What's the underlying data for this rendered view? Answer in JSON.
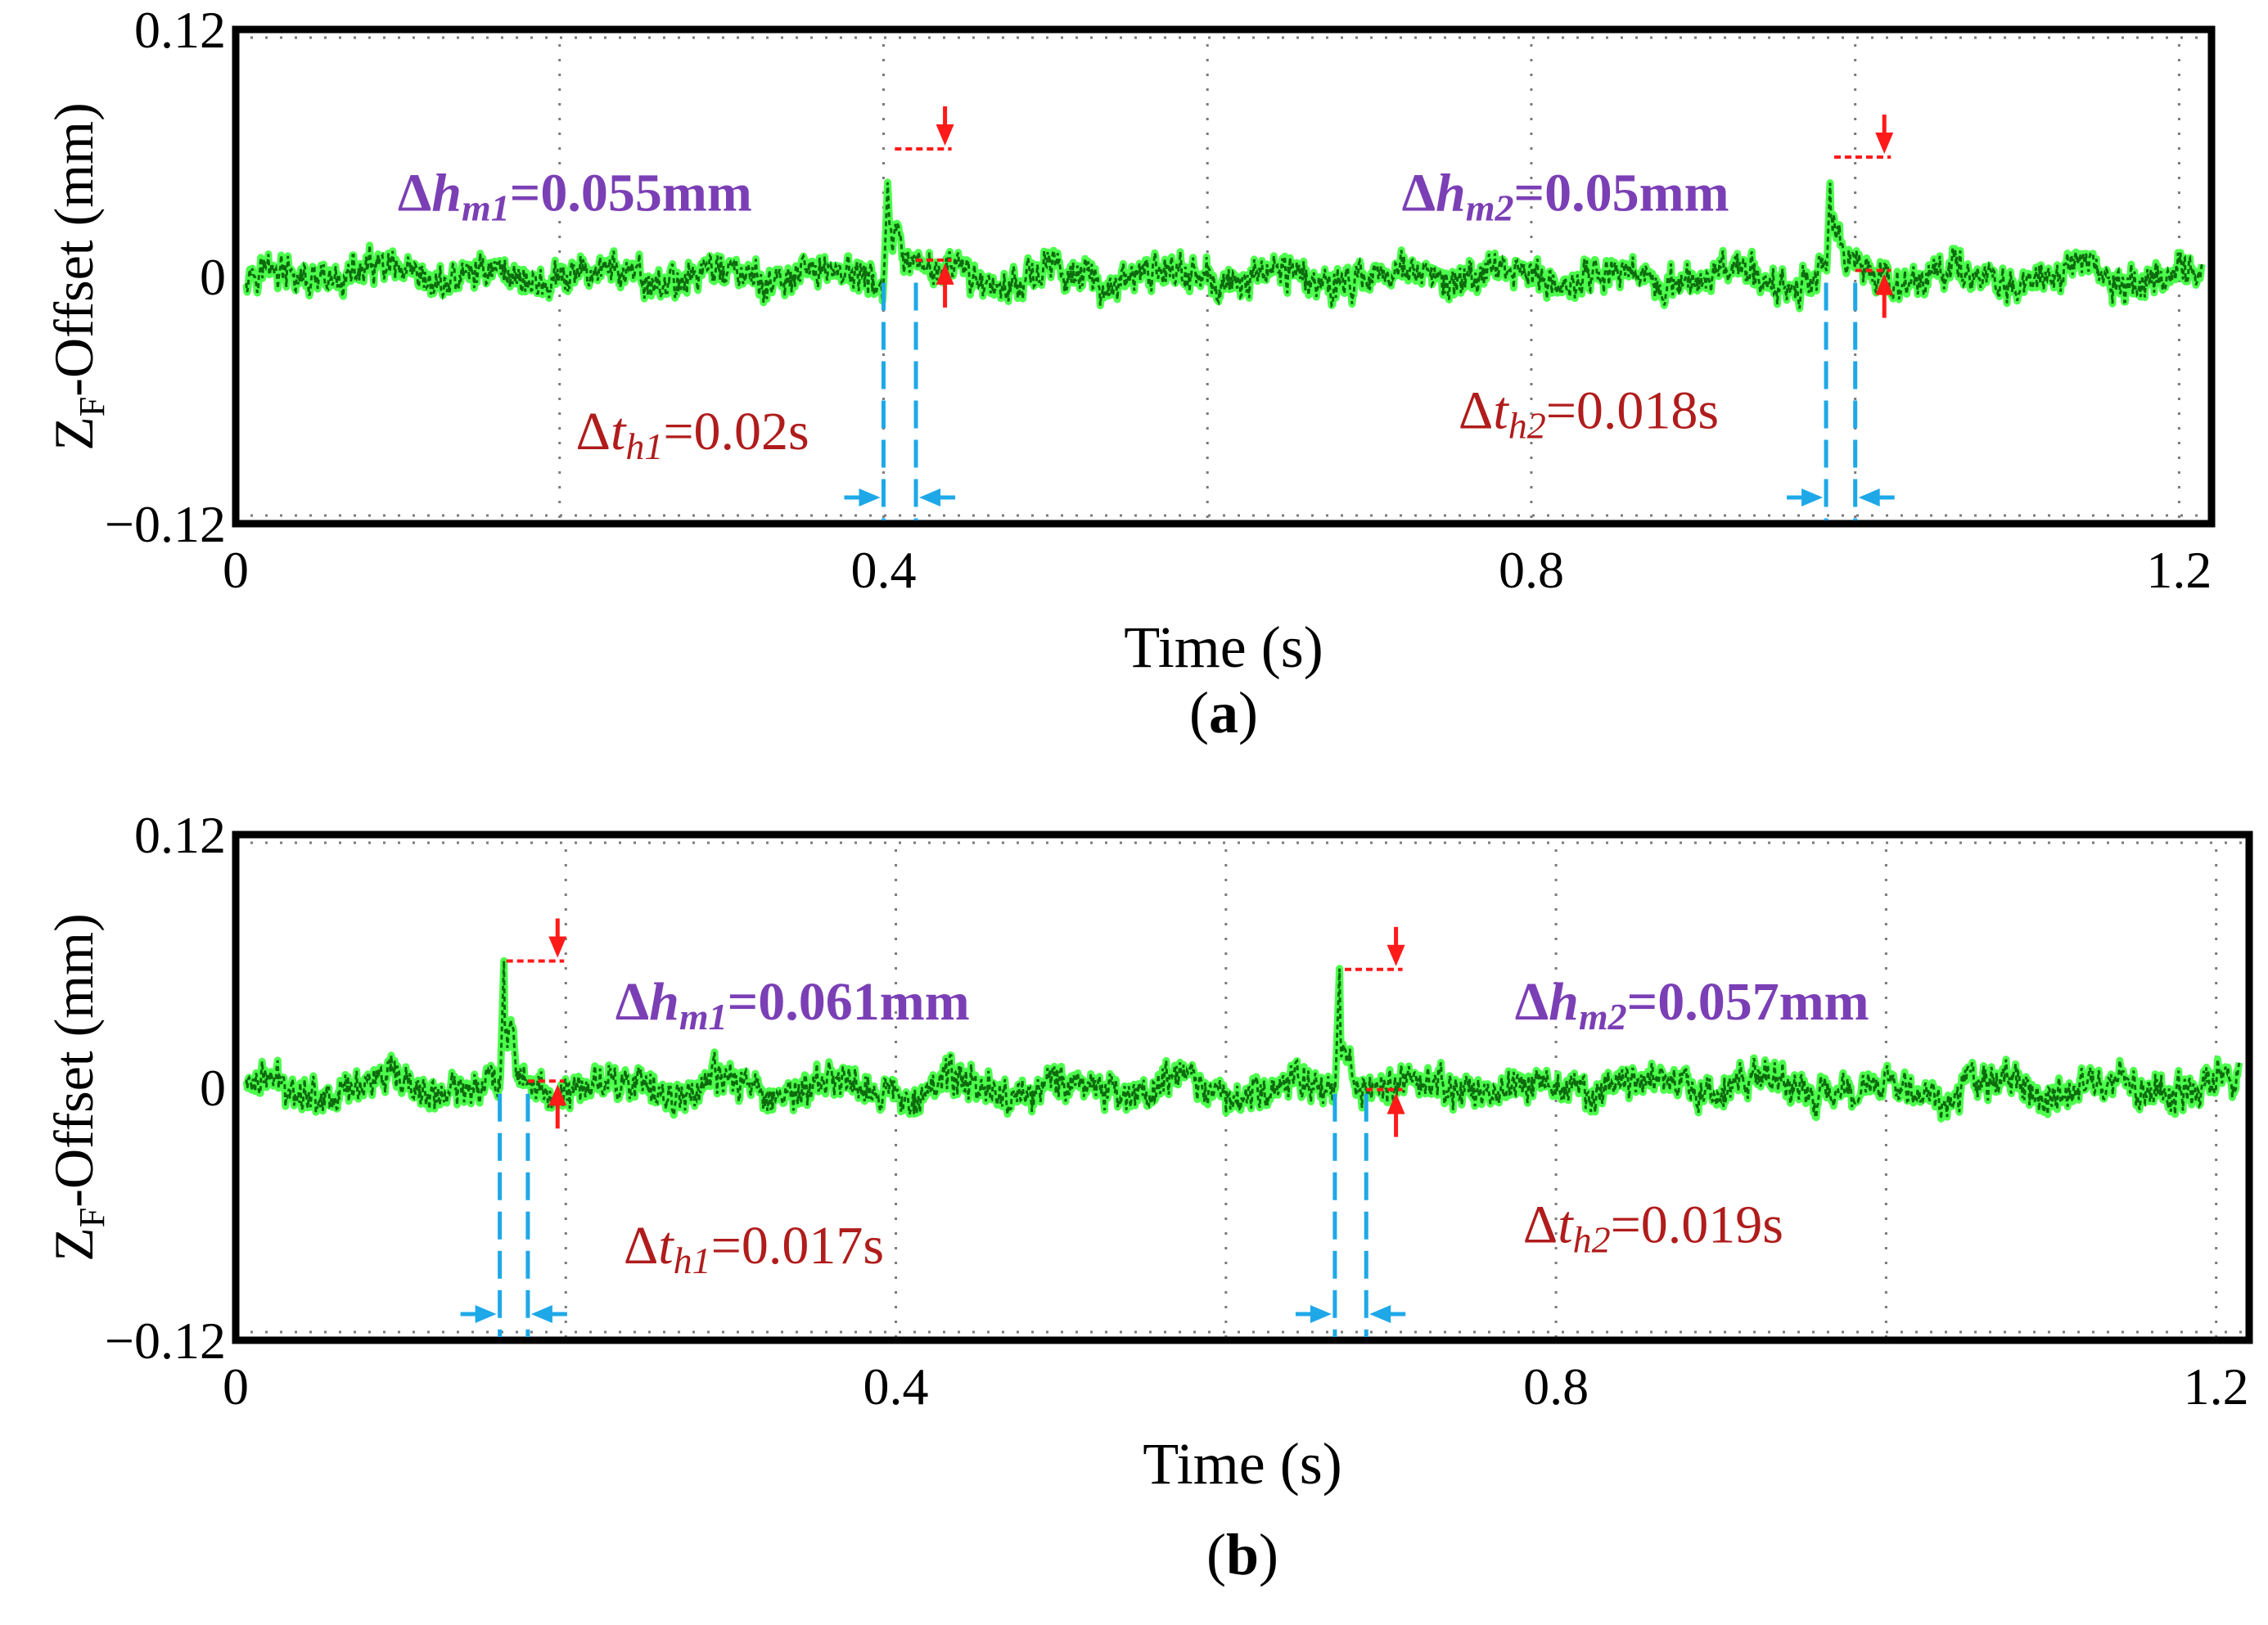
{
  "chart_data": [
    {
      "type": "line",
      "panel_label": "(a)",
      "panel_letter": "a",
      "xlabel": "Time (s)",
      "ylabel_main": "Z",
      "ylabel_sub": "F",
      "ylabel_rest": "-Offset (mm)",
      "xlim": [
        0,
        1.22
      ],
      "ylim": [
        -0.12,
        0.12
      ],
      "xticks": [
        0,
        0.4,
        0.8,
        1.2
      ],
      "xtick_labels": [
        "0",
        "0.4",
        "0.8",
        "1.2"
      ],
      "yticks": [
        -0.12,
        0,
        0.12
      ],
      "ytick_labels": [
        "−0.12",
        "0",
        "0.12"
      ],
      "grid": true,
      "series": [
        {
          "name": "Z-Offset",
          "noise_amplitude": 0.012,
          "disturbances": [
            {
              "t_start": 0.4,
              "t_end": 0.42,
              "peak": 0.055
            },
            {
              "t_start": 0.982,
              "t_end": 1.0,
              "peak": 0.05
            }
          ]
        }
      ],
      "annotations": [
        {
          "kind": "height",
          "delta": "Δ",
          "var": "h",
          "sub": "m1",
          "text": "=0.055mm",
          "t": 0.42,
          "top": 0.062,
          "bottom": 0.008,
          "label_t": 0.1,
          "label_y": 0.04
        },
        {
          "kind": "height",
          "delta": "Δ",
          "var": "h",
          "sub": "m2",
          "text": "=0.05mm",
          "t": 1.0,
          "top": 0.058,
          "bottom": 0.003,
          "label_t": 0.72,
          "label_y": 0.04
        },
        {
          "kind": "width",
          "delta": "Δ",
          "var": "t",
          "sub": "h1",
          "text": "=0.02s",
          "t1": 0.4,
          "t2": 0.42,
          "label_t": 0.21,
          "label_y": -0.075
        },
        {
          "kind": "width",
          "delta": "Δ",
          "var": "t",
          "sub": "h2",
          "text": "=0.018s",
          "t1": 0.982,
          "t2": 1.0,
          "label_t": 0.755,
          "label_y": -0.065
        }
      ]
    },
    {
      "type": "line",
      "panel_label": "(b)",
      "panel_letter": "b",
      "xlabel": "Time (s)",
      "ylabel_main": "Z",
      "ylabel_sub": "F",
      "ylabel_rest": "-Offset (mm)",
      "xlim": [
        0,
        1.22
      ],
      "ylim": [
        -0.12,
        0.12
      ],
      "xticks": [
        0,
        0.4,
        0.8,
        1.2
      ],
      "xtick_labels": [
        "0",
        "0.4",
        "0.8",
        "1.2"
      ],
      "yticks": [
        -0.12,
        0,
        0.12
      ],
      "ytick_labels": [
        "−0.12",
        "0",
        "0.12"
      ],
      "grid": true,
      "series": [
        {
          "name": "Z-Offset",
          "noise_amplitude": 0.012,
          "disturbances": [
            {
              "t_start": 0.16,
              "t_end": 0.177,
              "peak": 0.061
            },
            {
              "t_start": 0.666,
              "t_end": 0.685,
              "peak": 0.057
            }
          ]
        }
      ],
      "annotations": [
        {
          "kind": "height",
          "delta": "Δ",
          "var": "h",
          "sub": "m1",
          "text": "=0.061mm",
          "t": 0.177,
          "top": 0.06,
          "bottom": 0.003,
          "label_t": 0.23,
          "label_y": 0.04
        },
        {
          "kind": "height",
          "delta": "Δ",
          "var": "h",
          "sub": "m2",
          "text": "=0.057mm",
          "t": 0.685,
          "top": 0.056,
          "bottom": -0.001,
          "label_t": 0.775,
          "label_y": 0.04
        },
        {
          "kind": "width",
          "delta": "Δ",
          "var": "t",
          "sub": "h1",
          "text": "=0.017s",
          "t1": 0.16,
          "t2": 0.177,
          "label_t": 0.235,
          "label_y": -0.075
        },
        {
          "kind": "width",
          "delta": "Δ",
          "var": "t",
          "sub": "h2",
          "text": "=0.019s",
          "t1": 0.666,
          "t2": 0.685,
          "label_t": 0.78,
          "label_y": -0.065
        }
      ]
    }
  ],
  "colors": {
    "signal_dark": "#0d6b0d",
    "signal_light": "#4cff4c",
    "marker_red": "#ff1a1a",
    "marker_blue": "#1ea8e8",
    "height_label": "#7b3fb5",
    "width_label": "#b01c1c",
    "axis": "#000000",
    "grid": "#7a7a7a"
  }
}
